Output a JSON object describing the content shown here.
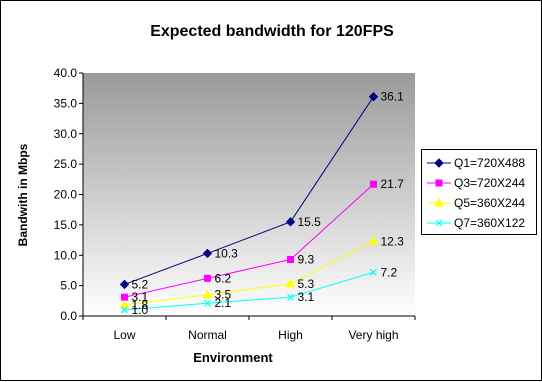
{
  "chart_data": {
    "type": "line",
    "title": "Expected bandwidth for 120FPS",
    "xlabel": "Environment",
    "ylabel": "Bandwith in Mbps",
    "categories": [
      "Low",
      "Normal",
      "High",
      "Very high"
    ],
    "ylim": [
      0,
      40
    ],
    "yticks": [
      "0.0",
      "5.0",
      "10.0",
      "15.0",
      "20.0",
      "25.0",
      "30.0",
      "35.0",
      "40.0"
    ],
    "grid": false,
    "legend_position": "right",
    "plot_background": "gradient gray to white",
    "series": [
      {
        "name": "Q1=720X488",
        "values": [
          5.2,
          10.3,
          15.5,
          36.1
        ],
        "labels": [
          "5.2",
          "10.3",
          "15.5",
          "36.1"
        ],
        "color": "#000080",
        "marker": "diamond"
      },
      {
        "name": "Q3=720X244",
        "values": [
          3.1,
          6.2,
          9.3,
          21.7
        ],
        "labels": [
          "3.1",
          "6.2",
          "9.3",
          "21.7"
        ],
        "color": "#ff00ff",
        "marker": "square"
      },
      {
        "name": "Q5=360X244",
        "values": [
          1.8,
          3.5,
          5.3,
          12.3
        ],
        "labels": [
          "1.8",
          "3.5",
          "5.3",
          "12.3"
        ],
        "color": "#ffff00",
        "marker": "triangle"
      },
      {
        "name": "Q7=360X122",
        "values": [
          1.0,
          2.1,
          3.1,
          7.2
        ],
        "labels": [
          "1.0",
          "2.1",
          "3.1",
          "7.2"
        ],
        "color": "#00ffff",
        "marker": "x"
      }
    ]
  }
}
